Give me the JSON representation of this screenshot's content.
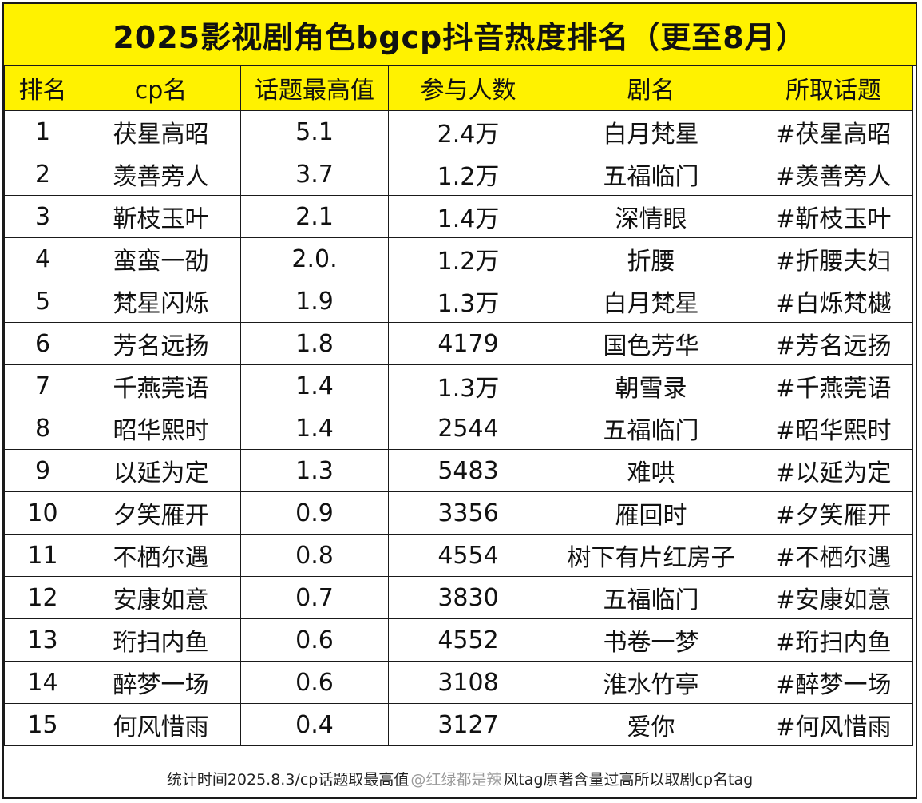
{
  "title": "2025影视剧角色bgcp抖音热度排名（更至8月）",
  "headers": [
    "排名",
    "cp名",
    "话题最高值",
    "参与人数",
    "剧名",
    "所取话题"
  ],
  "rows": [
    [
      "1",
      "茯星高昭",
      "5.1",
      "2.4万",
      "白月梵星",
      "#茯星高昭"
    ],
    [
      "2",
      "羡善旁人",
      "3.7",
      "1.2万",
      "五福临门",
      "#羡善旁人"
    ],
    [
      "3",
      "靳枝玉叶",
      "2.1",
      "1.4万",
      "深情眼",
      "#靳枝玉叶"
    ],
    [
      "4",
      "蛮蛮一劭",
      "2.0.",
      "1.2万",
      "折腰",
      "#折腰夫妇"
    ],
    [
      "5",
      "梵星闪烁",
      "1.9",
      "1.3万",
      "白月梵星",
      "#白烁梵樾"
    ],
    [
      "6",
      "芳名远扬",
      "1.8",
      "4179",
      "国色芳华",
      "#芳名远扬"
    ],
    [
      "7",
      "千燕莞语",
      "1.4",
      "1.3万",
      "朝雪录",
      "#千燕莞语"
    ],
    [
      "8",
      "昭华熙时",
      "1.4",
      "2544",
      "五福临门",
      "#昭华熙时"
    ],
    [
      "9",
      "以延为定",
      "1.3",
      "5483",
      "难哄",
      "#以延为定"
    ],
    [
      "10",
      "夕笑雁开",
      "0.9",
      "3356",
      "雁回时",
      "#夕笑雁开"
    ],
    [
      "11",
      "不栖尔遇",
      "0.8",
      "4554",
      "树下有片红房子",
      "#不栖尔遇"
    ],
    [
      "12",
      "安康如意",
      "0.7",
      "3830",
      "五福临门",
      "#安康如意"
    ],
    [
      "13",
      "珩扫内鱼",
      "0.6",
      "4552",
      "书卷一梦",
      "#珩扫内鱼"
    ],
    [
      "14",
      "醉梦一场",
      "0.6",
      "3108",
      "淮水竹亭",
      "#醉梦一场"
    ],
    [
      "15",
      "何风惜雨",
      "0.4",
      "3127",
      "爱你",
      "#何风惜雨"
    ]
  ],
  "footer": {
    "text_left": "统计时间2025.8.3/cp话题取最高值",
    "watermark": "@红绿都是辣",
    "text_right": "风tag原著含量过高所以取剧cp名tag"
  },
  "colors": {
    "header_bg": "#fff200",
    "border": "#1a1a1a"
  }
}
